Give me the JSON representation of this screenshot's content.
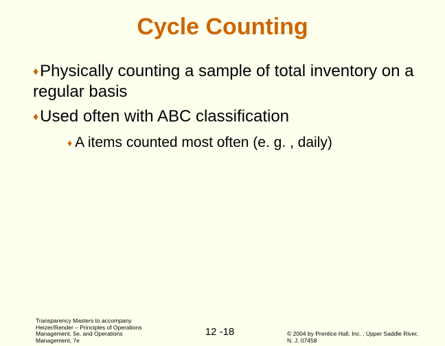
{
  "colors": {
    "background": "#ffffee",
    "accent": "#cc6600",
    "text": "#000000"
  },
  "title": "Cycle Counting",
  "bullets": [
    {
      "text": "Physically counting a sample of total inventory on a regular basis",
      "sub": []
    },
    {
      "text": "Used often with ABC classification",
      "sub": [
        {
          "text": "A items counted most often (e. g. , daily)"
        }
      ]
    }
  ],
  "footer": {
    "left": "Transparency Masters to accompany Heizer/Render – Principles of Operations Management, 5e, and Operations Management, 7e",
    "center": "12 -18",
    "right": "© 2004 by Prentice Hall, Inc. , Upper Saddle River, N. J. 07458"
  },
  "typography": {
    "title_fontsize": 34,
    "body_fontsize": 24,
    "sub_fontsize": 21,
    "footer_fontsize": 8.5,
    "pagenum_fontsize": 15
  }
}
